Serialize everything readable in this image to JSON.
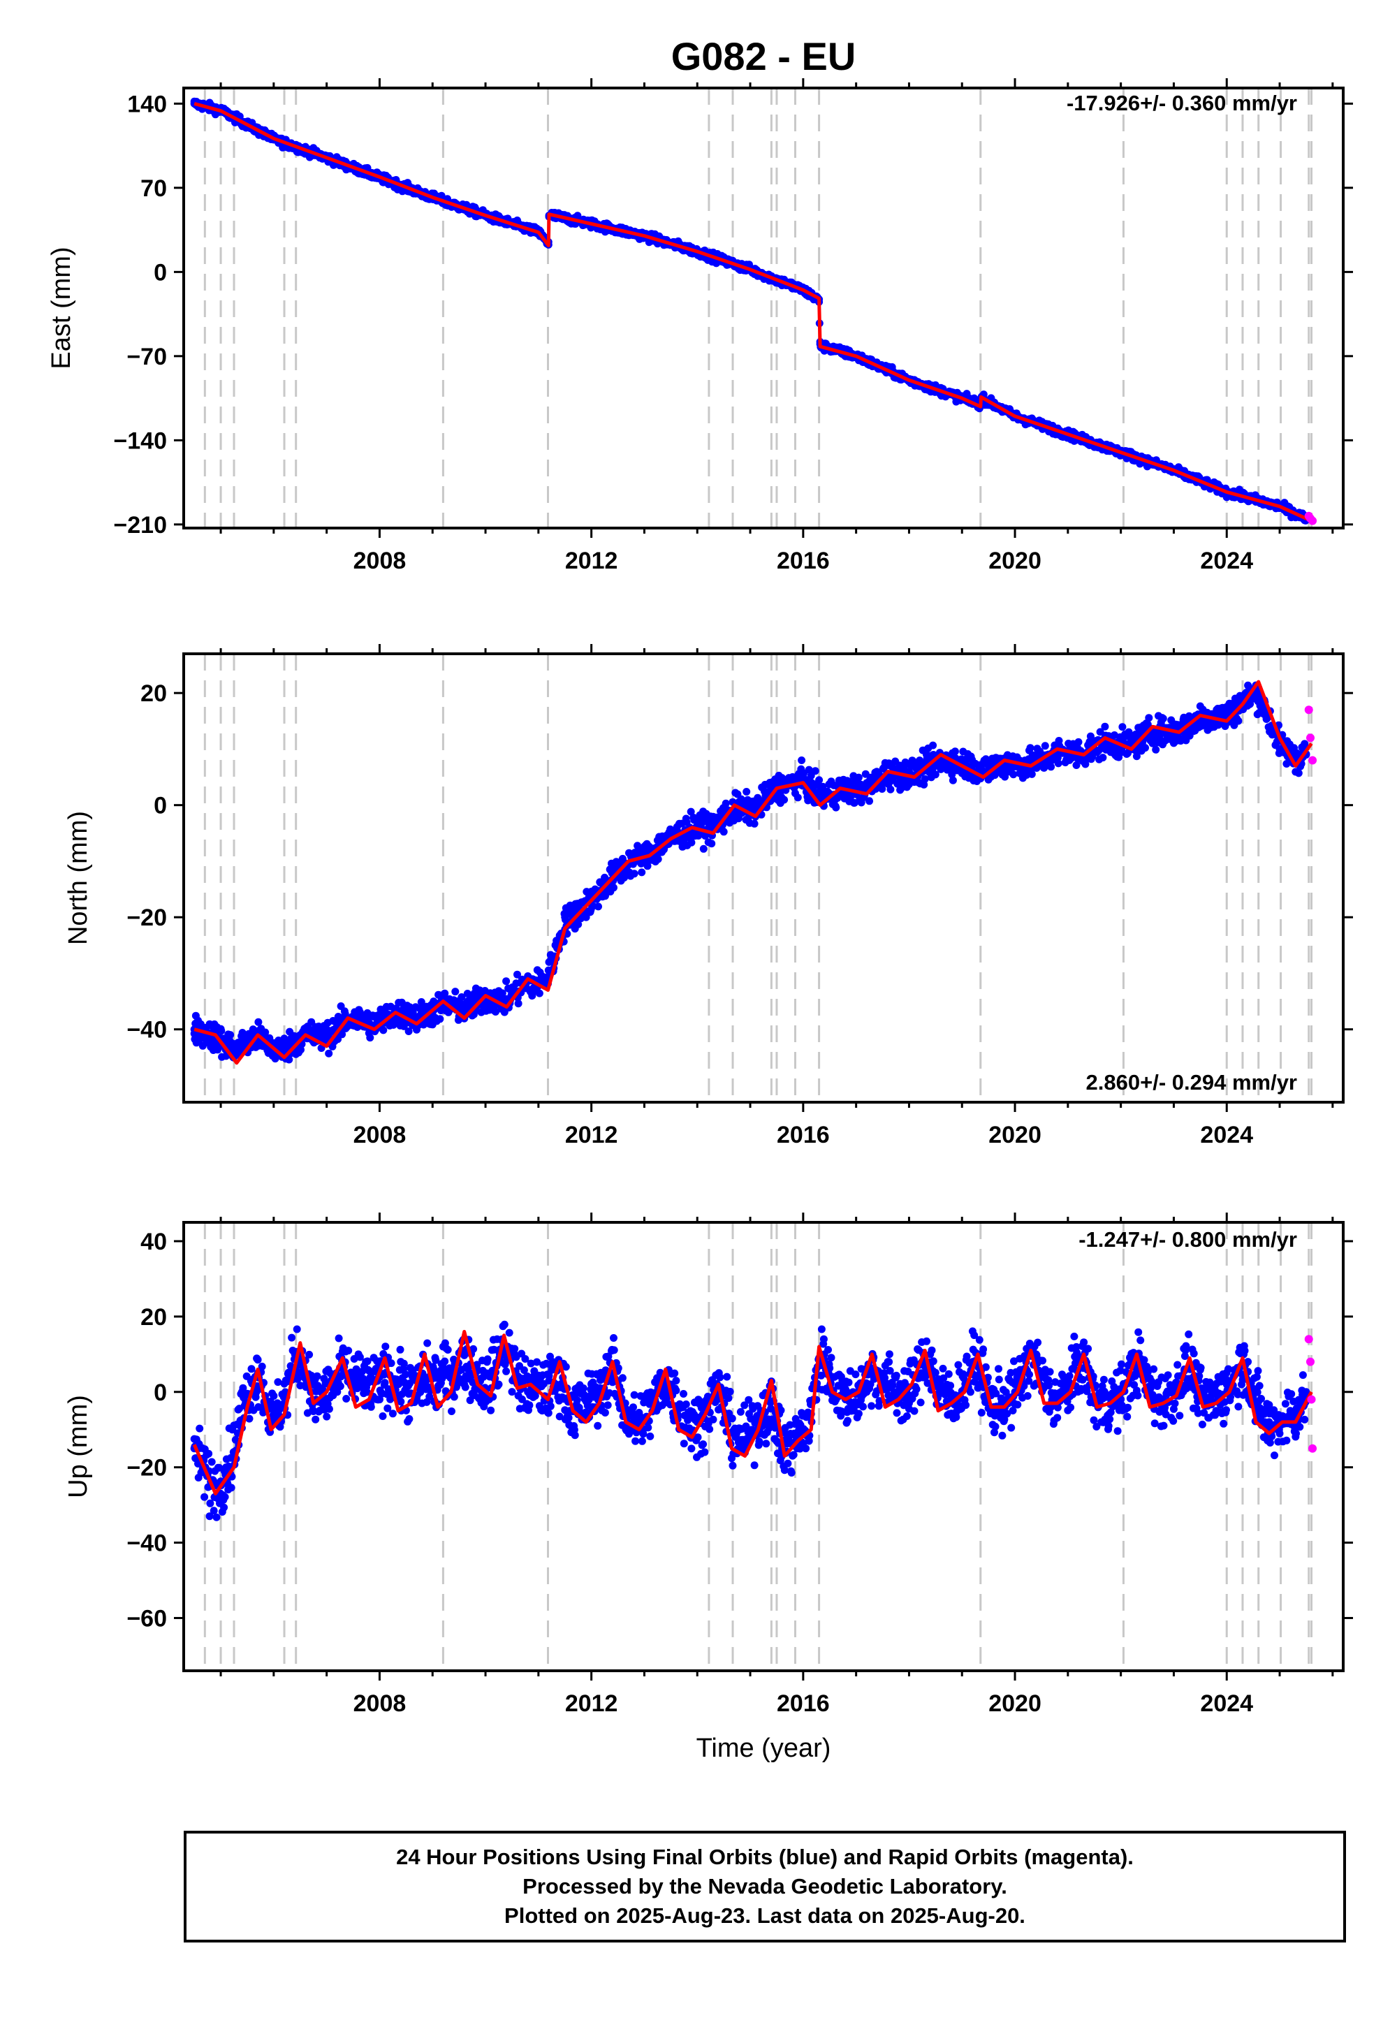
{
  "title": "G082 - EU",
  "xlabel": "Time (year)",
  "x_ticks": [
    2008,
    2012,
    2016,
    2020,
    2024
  ],
  "xlim": [
    2004.3,
    2026.2
  ],
  "colors": {
    "final": "#0000ff",
    "rapid": "#ff00ff",
    "model": "#ff0000",
    "event": "#c8c8c8"
  },
  "event_lines": [
    2004.7,
    2005.0,
    2005.25,
    2006.2,
    2006.42,
    2009.2,
    2011.18,
    2014.22,
    2014.67,
    2015.4,
    2015.5,
    2015.85,
    2016.3,
    2019.35,
    2022.05,
    2024.0,
    2024.3,
    2024.6,
    2025.02,
    2025.55,
    2025.6
  ],
  "footer": {
    "line1": "24 Hour Positions Using Final Orbits (blue) and Rapid Orbits (magenta).",
    "line2": "Processed by the Nevada Geodetic Laboratory.",
    "line3": "Plotted on 2025-Aug-23. Last data on 2025-Aug-20."
  },
  "chart_data": [
    {
      "type": "scatter",
      "ylabel": "East (mm)",
      "rate": "-17.926+/- 0.360 mm/yr",
      "rate_position": "top-right",
      "ylim": [
        -213,
        153
      ],
      "y_ticks": [
        140,
        70,
        0,
        -70,
        -140,
        -210
      ],
      "series": [
        {
          "name": "Final Orbits",
          "color": "#0000ff",
          "x": [
            2004.5,
            2005,
            2006,
            2007,
            2008,
            2009,
            2010,
            2011,
            2011.19,
            2011.2,
            2012,
            2013,
            2014,
            2015,
            2016,
            2016.3,
            2016.32,
            2017,
            2018,
            2019,
            2019.35,
            2019.36,
            2020,
            2021,
            2022,
            2023,
            2024,
            2025,
            2025.5
          ],
          "y": [
            140,
            135,
            110,
            95,
            78,
            62,
            47,
            33,
            25,
            47,
            40,
            30,
            17,
            2,
            -15,
            -25,
            -60,
            -70,
            -90,
            -105,
            -108,
            -105,
            -120,
            -135,
            -150,
            -165,
            -183,
            -195,
            -205
          ]
        },
        {
          "name": "Rapid Orbits",
          "color": "#ff00ff",
          "x": [
            2025.55,
            2025.58,
            2025.62
          ],
          "y": [
            -203,
            -205,
            -207
          ]
        }
      ],
      "model": {
        "color": "#ff0000",
        "x": [
          2004.5,
          2005,
          2006,
          2007,
          2008,
          2009,
          2010,
          2011,
          2011.19,
          2011.2,
          2012,
          2013,
          2014,
          2015,
          2016,
          2016.3,
          2016.32,
          2017,
          2018,
          2019,
          2019.35,
          2019.36,
          2020,
          2021,
          2022,
          2023,
          2024,
          2025,
          2025.6
        ],
        "y": [
          140,
          134,
          111,
          95,
          79,
          62,
          47,
          33,
          22,
          48,
          40,
          30,
          17,
          2,
          -15,
          -22,
          -62,
          -70,
          -90,
          -105,
          -112,
          -104,
          -120,
          -135,
          -150,
          -165,
          -183,
          -195,
          -207
        ]
      }
    },
    {
      "type": "scatter",
      "ylabel": "North (mm)",
      "rate": "2.860+/- 0.294 mm/yr",
      "rate_position": "bottom-right",
      "ylim": [
        -53,
        27
      ],
      "y_ticks": [
        20,
        0,
        -20,
        -40
      ],
      "series": [
        {
          "name": "Final Orbits",
          "color": "#0000ff",
          "x": [
            2004.5,
            2005,
            2005.5,
            2006,
            2006.5,
            2007,
            2007.5,
            2008,
            2008.5,
            2009,
            2009.5,
            2010,
            2010.5,
            2011,
            2011.2,
            2011.5,
            2012,
            2012.5,
            2013,
            2013.5,
            2014,
            2014.5,
            2015,
            2015.5,
            2016,
            2016.5,
            2017,
            2017.5,
            2018,
            2018.5,
            2019,
            2019.5,
            2020,
            2020.5,
            2021,
            2021.5,
            2022,
            2022.5,
            2023,
            2023.5,
            2024,
            2024.5,
            2025,
            2025.5
          ],
          "y": [
            -40,
            -42,
            -41,
            -43,
            -41,
            -40,
            -38,
            -38,
            -37,
            -37,
            -35,
            -35,
            -33,
            -32,
            -28,
            -20,
            -17,
            -12,
            -9,
            -6,
            -4,
            -2,
            0,
            3,
            5,
            2,
            3,
            5,
            6,
            7,
            8,
            7,
            7,
            8,
            9,
            10,
            11,
            12,
            13,
            15,
            17,
            19,
            10,
            9
          ]
        },
        {
          "name": "Rapid Orbits",
          "color": "#ff00ff",
          "x": [
            2025.55,
            2025.58,
            2025.62
          ],
          "y": [
            17,
            12,
            8
          ]
        }
      ],
      "model": {
        "color": "#ff0000",
        "x": [
          2004.5,
          2004.9,
          2005.3,
          2005.7,
          2006.2,
          2006.6,
          2007.0,
          2007.4,
          2007.9,
          2008.3,
          2008.7,
          2009.2,
          2009.6,
          2010.0,
          2010.4,
          2010.8,
          2011.18,
          2011.5,
          2011.9,
          2012.3,
          2012.7,
          2013.1,
          2013.5,
          2013.9,
          2014.3,
          2014.7,
          2015.1,
          2015.5,
          2016.0,
          2016.32,
          2016.7,
          2017.2,
          2017.6,
          2018.1,
          2018.6,
          2019.0,
          2019.4,
          2019.8,
          2020.3,
          2020.8,
          2021.3,
          2021.7,
          2022.2,
          2022.6,
          2023.1,
          2023.5,
          2024.0,
          2024.3,
          2024.6,
          2025.0,
          2025.3,
          2025.6
        ],
        "y": [
          -40,
          -41,
          -46,
          -41,
          -45,
          -41,
          -43,
          -38,
          -40,
          -37,
          -39,
          -35,
          -38,
          -34,
          -36,
          -31,
          -33,
          -22,
          -18,
          -14,
          -10,
          -9,
          -6,
          -4,
          -5,
          0,
          -2,
          3,
          4,
          0,
          3,
          2,
          6,
          5,
          9,
          7,
          5,
          8,
          7,
          10,
          9,
          12,
          10,
          14,
          13,
          16,
          15,
          18,
          22,
          12,
          7,
          11
        ]
      }
    },
    {
      "type": "scatter",
      "ylabel": "Up (mm)",
      "rate": "-1.247+/- 0.800 mm/yr",
      "rate_position": "top-right",
      "ylim": [
        -74,
        45
      ],
      "y_ticks": [
        40,
        20,
        0,
        -20,
        -40,
        -60
      ],
      "series": [
        {
          "name": "Final Orbits",
          "color": "#0000ff",
          "x": [
            2004.5,
            2004.8,
            2005.1,
            2005.4,
            2005.7,
            2006.0,
            2006.4,
            2006.8,
            2007.2,
            2007.6,
            2008.0,
            2008.4,
            2008.8,
            2009.2,
            2009.6,
            2010.0,
            2010.4,
            2010.8,
            2011.2,
            2011.6,
            2012.0,
            2012.4,
            2012.8,
            2013.2,
            2013.6,
            2014.0,
            2014.4,
            2014.8,
            2015.2,
            2015.6,
            2016.0,
            2016.4,
            2016.8,
            2017.2,
            2017.6,
            2018.0,
            2018.4,
            2018.8,
            2019.2,
            2019.6,
            2020.0,
            2020.4,
            2020.8,
            2021.2,
            2021.6,
            2022.0,
            2022.4,
            2022.8,
            2023.2,
            2023.6,
            2024.0,
            2024.4,
            2024.8,
            2025.2,
            2025.5
          ],
          "y": [
            -15,
            -25,
            -20,
            0,
            5,
            -5,
            10,
            -2,
            0,
            10,
            -2,
            8,
            -3,
            12,
            2,
            5,
            12,
            0,
            3,
            -5,
            2,
            5,
            -8,
            -2,
            3,
            -8,
            0,
            -10,
            -5,
            -15,
            -10,
            10,
            -2,
            0,
            8,
            -3,
            10,
            -2,
            8,
            -4,
            0,
            10,
            -2,
            8,
            -3,
            -2,
            8,
            -2,
            6,
            -3,
            2,
            8,
            -8,
            -5,
            0
          ]
        },
        {
          "name": "Rapid Orbits",
          "color": "#ff00ff",
          "x": [
            2025.55,
            2025.58,
            2025.6,
            2025.62
          ],
          "y": [
            14,
            8,
            -2,
            -15
          ]
        }
      ],
      "model": {
        "color": "#ff0000",
        "x": [
          2004.5,
          2004.9,
          2005.25,
          2005.5,
          2005.7,
          2005.95,
          2006.2,
          2006.5,
          2006.75,
          2007.0,
          2007.3,
          2007.55,
          2007.8,
          2008.1,
          2008.35,
          2008.6,
          2008.85,
          2009.1,
          2009.35,
          2009.6,
          2009.85,
          2010.1,
          2010.35,
          2010.6,
          2010.85,
          2011.18,
          2011.4,
          2011.65,
          2011.9,
          2012.15,
          2012.4,
          2012.65,
          2012.9,
          2013.15,
          2013.4,
          2013.65,
          2013.9,
          2014.15,
          2014.4,
          2014.65,
          2014.9,
          2015.15,
          2015.4,
          2015.65,
          2015.9,
          2016.15,
          2016.3,
          2016.55,
          2016.8,
          2017.05,
          2017.3,
          2017.55,
          2017.8,
          2018.05,
          2018.3,
          2018.55,
          2018.8,
          2019.05,
          2019.3,
          2019.55,
          2019.8,
          2020.05,
          2020.3,
          2020.55,
          2020.8,
          2021.05,
          2021.3,
          2021.55,
          2021.8,
          2022.05,
          2022.3,
          2022.55,
          2022.8,
          2023.05,
          2023.3,
          2023.55,
          2023.8,
          2024.05,
          2024.3,
          2024.55,
          2024.8,
          2025.05,
          2025.3,
          2025.6
        ],
        "y": [
          -14,
          -27,
          -20,
          -4,
          6,
          -10,
          -6,
          13,
          -3,
          0,
          9,
          -4,
          -2,
          9,
          -5,
          -3,
          10,
          -4,
          0,
          16,
          2,
          -1,
          15,
          1,
          2,
          -2,
          8,
          -5,
          -8,
          -3,
          8,
          -8,
          -10,
          -5,
          6,
          -10,
          -12,
          -6,
          2,
          -15,
          -17,
          -10,
          3,
          -17,
          -13,
          -10,
          12,
          0,
          -2,
          0,
          10,
          -4,
          -2,
          2,
          11,
          -5,
          -3,
          0,
          10,
          -4,
          -4,
          0,
          11,
          -3,
          -3,
          0,
          10,
          -4,
          -3,
          0,
          10,
          -4,
          -3,
          -1,
          9,
          -4,
          -3,
          0,
          9,
          -8,
          -11,
          -8,
          -8,
          0
        ]
      }
    }
  ]
}
